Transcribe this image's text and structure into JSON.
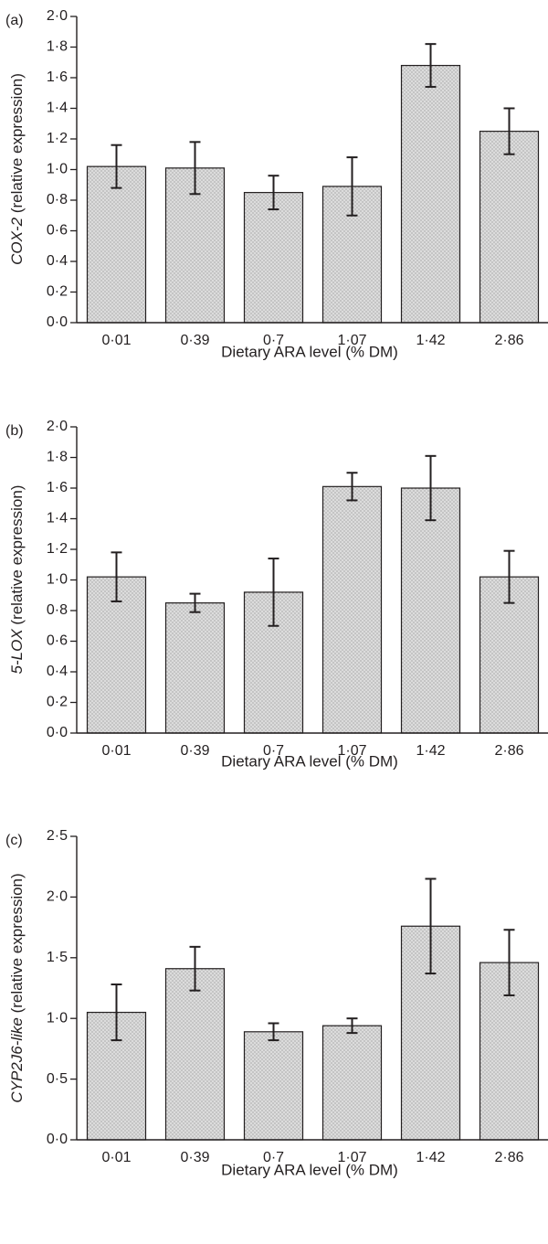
{
  "chart_data": [
    {
      "type": "bar",
      "panel_label": "(a)",
      "categories": [
        "0·01",
        "0·39",
        "0·7",
        "1·07",
        "1·42",
        "2·86"
      ],
      "values": [
        1.02,
        1.01,
        0.85,
        0.89,
        1.68,
        1.25
      ],
      "errors": [
        0.14,
        0.17,
        0.11,
        0.19,
        0.14,
        0.15
      ],
      "ylabel_gene": "COX-2",
      "ylabel_suffix": " (relative expression)",
      "xlabel": "Dietary ARA level (% DM)",
      "ylim": [
        0,
        2.0
      ],
      "yticks": [
        "0·0",
        "0·2",
        "0·4",
        "0·6",
        "0·8",
        "1·0",
        "1·2",
        "1·4",
        "1·6",
        "1·8",
        "2·0"
      ],
      "bar_color": "#dcdcdc",
      "grid": false
    },
    {
      "type": "bar",
      "panel_label": "(b)",
      "categories": [
        "0·01",
        "0·39",
        "0·7",
        "1·07",
        "1·42",
        "2·86"
      ],
      "values": [
        1.02,
        0.85,
        0.92,
        1.61,
        1.6,
        1.02
      ],
      "errors": [
        0.16,
        0.06,
        0.22,
        0.09,
        0.21,
        0.17
      ],
      "ylabel_gene": "5-LOX",
      "ylabel_suffix": " (relative expression)",
      "xlabel": "Dietary ARA level (% DM)",
      "ylim": [
        0,
        2.0
      ],
      "yticks": [
        "0·0",
        "0·2",
        "0·4",
        "0·6",
        "0·8",
        "1·0",
        "1·2",
        "1·4",
        "1·6",
        "1·8",
        "2·0"
      ],
      "bar_color": "#dcdcdc",
      "grid": false
    },
    {
      "type": "bar",
      "panel_label": "(c)",
      "categories": [
        "0·01",
        "0·39",
        "0·7",
        "1·07",
        "1·42",
        "2·86"
      ],
      "values": [
        1.05,
        1.41,
        0.89,
        0.94,
        1.76,
        1.46
      ],
      "errors": [
        0.23,
        0.18,
        0.07,
        0.06,
        0.39,
        0.27
      ],
      "ylabel_gene": "CYP2J6-like",
      "ylabel_suffix": " (relative expression)",
      "xlabel": "Dietary ARA level (% DM)",
      "ylim": [
        0,
        2.5
      ],
      "yticks": [
        "0·0",
        "0·5",
        "1·0",
        "1·5",
        "2·0",
        "2·5"
      ],
      "bar_color": "#dcdcdc",
      "grid": false
    }
  ]
}
